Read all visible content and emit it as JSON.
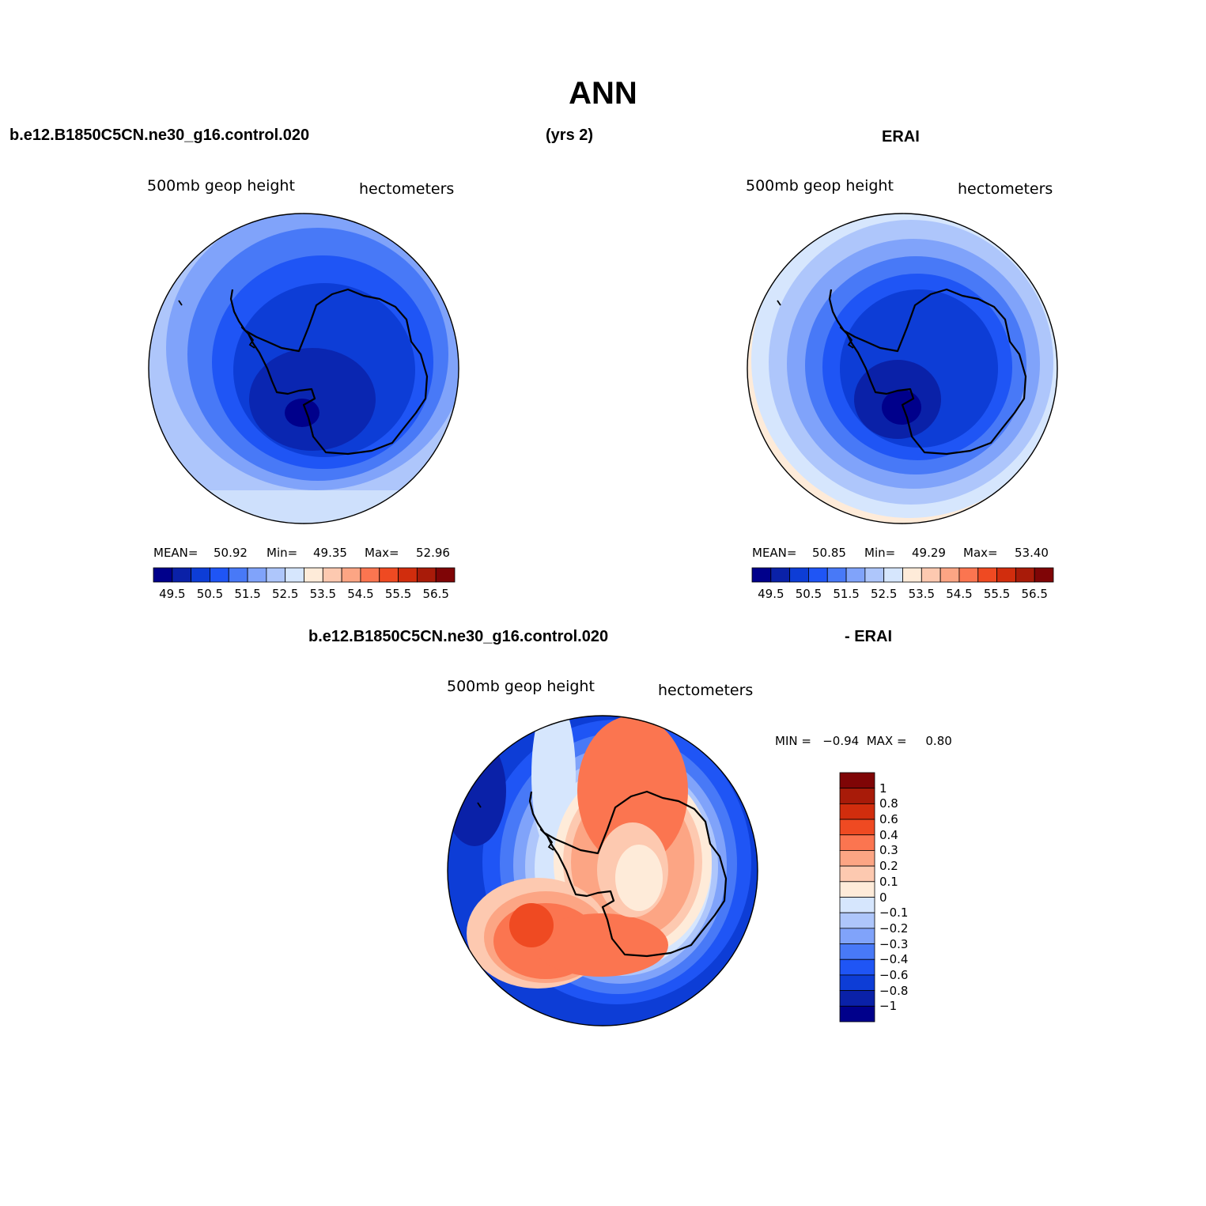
{
  "title": "ANN",
  "panel1": {
    "case": "b.e12.B1850C5CN.ne30_g16.control.020",
    "years": "(yrs 2)",
    "left_label": "500mb  geop  height",
    "right_label": "hectometers",
    "stats": {
      "mean_label": "MEAN=",
      "mean": "50.92",
      "min_label": "Min=",
      "min": "49.35",
      "max_label": "Max=",
      "max": "52.96"
    }
  },
  "panel2": {
    "case": "ERAI",
    "left_label": "500mb  geop  height",
    "right_label": "hectometers",
    "stats": {
      "mean_label": "MEAN=",
      "mean": "50.85",
      "min_label": "Min=",
      "min": "49.29",
      "max_label": "Max=",
      "max": "53.40"
    }
  },
  "panel3": {
    "case": "b.e12.B1850C5CN.ne30_g16.control.020",
    "suffix": "- ERAI",
    "left_label": "500mb  geop  height",
    "right_label": "hectometers",
    "stats": {
      "text": "MIN =   −0.94  MAX =     0.80"
    }
  },
  "abs_colorbar": {
    "colors": [
      "#00008b",
      "#0a21a8",
      "#0d3dd6",
      "#1f55f5",
      "#4879f7",
      "#80a3fa",
      "#aec6fb",
      "#d6e6fd",
      "#feebd9",
      "#fdc9b0",
      "#fca584",
      "#fb7550",
      "#ef4a22",
      "#d12d0d",
      "#a81b09",
      "#7f0506"
    ],
    "tick_labels": [
      "49.5",
      "50.5",
      "51.5",
      "52.5",
      "53.5",
      "54.5",
      "55.5",
      "56.5"
    ]
  },
  "diff_colorbar": {
    "colors": [
      "#00008b",
      "#0a21a8",
      "#0d3dd6",
      "#1f55f5",
      "#4879f7",
      "#80a3fa",
      "#aec6fb",
      "#d6e6fd",
      "#feebd9",
      "#fdc9b0",
      "#fca584",
      "#fb7550",
      "#ef4a22",
      "#d12d0d",
      "#a81b09",
      "#7f0506"
    ],
    "tick_labels": [
      "1",
      "0.8",
      "0.6",
      "0.4",
      "0.3",
      "0.2",
      "0.1",
      "0",
      "−0.1",
      "−0.2",
      "−0.3",
      "−0.4",
      "−0.6",
      "−0.8",
      "−1"
    ]
  }
}
